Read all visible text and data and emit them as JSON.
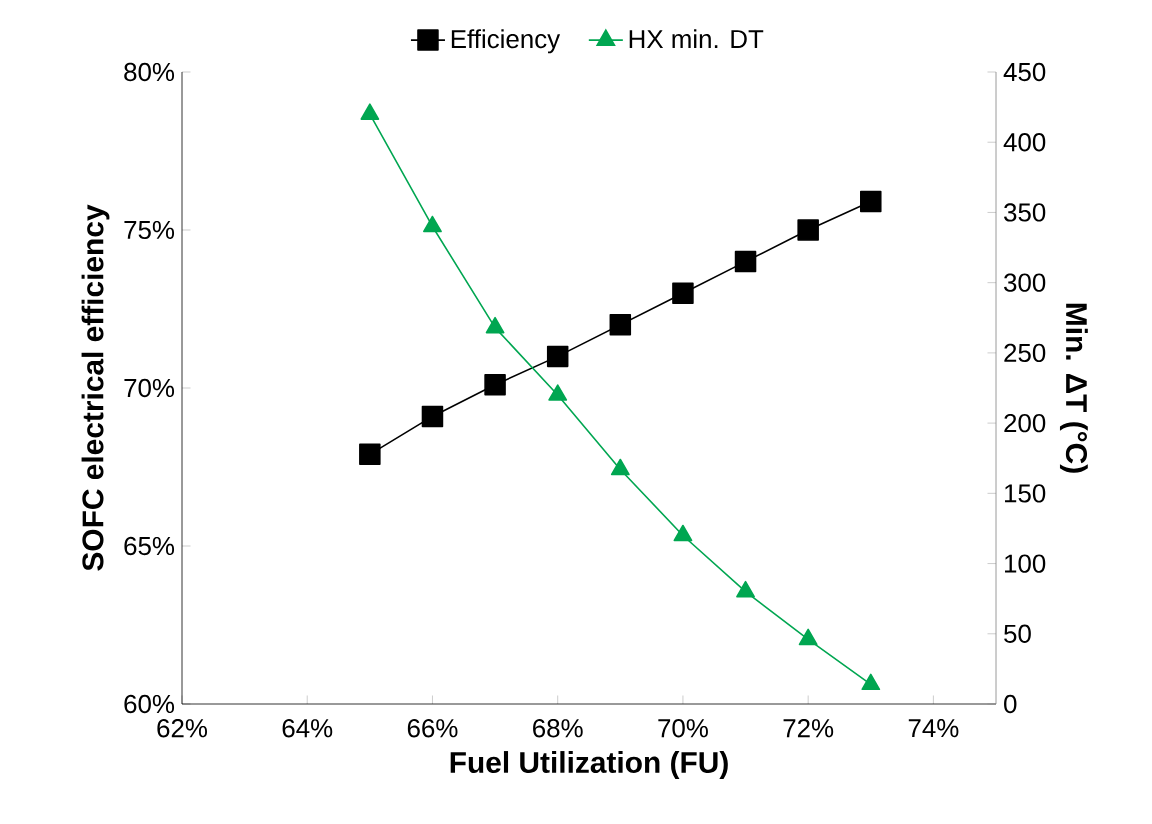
{
  "chart_data": {
    "type": "line",
    "xlabel": "Fuel Utilization (FU)",
    "ylabel": "SOFC electrical efficiency",
    "y2label": "Min. ΔT (°C)",
    "x": [
      65,
      66,
      67,
      68,
      69,
      70,
      71,
      72,
      73
    ],
    "series": [
      {
        "name": "Efficiency",
        "color": "#000000",
        "marker": "square",
        "values": [
          67.9,
          69.1,
          70.1,
          71.0,
          72.0,
          73.0,
          74.0,
          75.0,
          75.9
        ]
      },
      {
        "name": "HX min. DT",
        "color": "#00a651",
        "marker": "triangle",
        "axis": "y2",
        "values": [
          420,
          340,
          268,
          220,
          167,
          120,
          80,
          46,
          14
        ]
      }
    ],
    "xlim": [
      62,
      75
    ],
    "xticks": [
      {
        "value": 62,
        "label": "62%"
      },
      {
        "value": 64,
        "label": "64%"
      },
      {
        "value": 66,
        "label": "66%"
      },
      {
        "value": 68,
        "label": "68%"
      },
      {
        "value": 70,
        "label": "70%"
      },
      {
        "value": 72,
        "label": "72%"
      },
      {
        "value": 74,
        "label": "74%"
      }
    ],
    "ylim": [
      60,
      80
    ],
    "yticks": [
      {
        "value": 60,
        "label": "60%"
      },
      {
        "value": 65,
        "label": "65%"
      },
      {
        "value": 70,
        "label": "70%"
      },
      {
        "value": 75,
        "label": "75%"
      },
      {
        "value": 80,
        "label": "80%"
      }
    ],
    "y2lim": [
      0,
      450
    ],
    "y2ticks": [
      0,
      50,
      100,
      150,
      200,
      250,
      300,
      350,
      400,
      450
    ],
    "legend": "top",
    "grid": false
  }
}
